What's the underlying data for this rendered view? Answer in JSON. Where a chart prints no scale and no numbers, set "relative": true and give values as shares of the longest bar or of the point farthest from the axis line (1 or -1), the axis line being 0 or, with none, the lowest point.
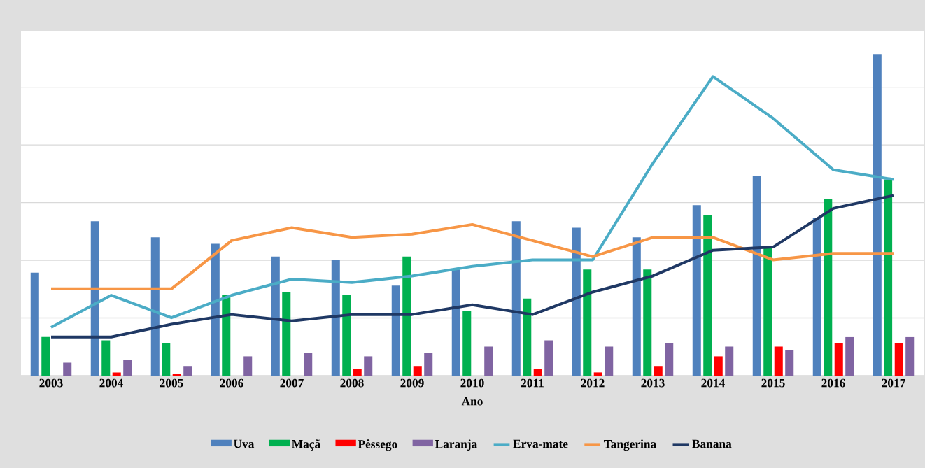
{
  "chart_data": {
    "type": "bar",
    "xlabel": "Ano",
    "relative": true,
    "grid": "y",
    "legend": "bottom",
    "categories": [
      "2003",
      "2004",
      "2005",
      "2006",
      "2007",
      "2008",
      "2009",
      "2010",
      "2011",
      "2012",
      "2013",
      "2014",
      "2015",
      "2016",
      "2017"
    ],
    "series": [
      {
        "name": "Uva",
        "color": "#4f81bd",
        "values": [
          0.32,
          0.48,
          0.43,
          0.41,
          0.37,
          0.36,
          0.28,
          0.33,
          0.48,
          0.46,
          0.43,
          0.53,
          0.62,
          0.49,
          1.0
        ]
      },
      {
        "name": "Maçã",
        "color": "#00b050",
        "values": [
          0.12,
          0.11,
          0.1,
          0.25,
          0.26,
          0.25,
          0.37,
          0.2,
          0.24,
          0.33,
          0.33,
          0.5,
          0.4,
          0.55,
          0.61
        ]
      },
      {
        "name": "Pêssego",
        "color": "#ff0000",
        "values": [
          0,
          0.01,
          0.005,
          0,
          0,
          0.02,
          0.03,
          0,
          0.02,
          0.01,
          0.03,
          0.06,
          0.09,
          0.1,
          0.1
        ]
      },
      {
        "name": "Laranja",
        "color": "#8064a2",
        "values": [
          0.04,
          0.05,
          0.03,
          0.06,
          0.07,
          0.06,
          0.07,
          0.09,
          0.11,
          0.09,
          0.1,
          0.09,
          0.08,
          0.12,
          0.12
        ]
      },
      {
        "name": "Erva-mate",
        "type": "line",
        "color": "#4bacc6",
        "values": [
          0.15,
          0.25,
          0.18,
          0.25,
          0.3,
          0.29,
          0.31,
          0.34,
          0.36,
          0.36,
          0.66,
          0.93,
          0.8,
          0.64,
          0.61
        ]
      },
      {
        "name": "Tangerina",
        "type": "line",
        "color": "#f79646",
        "values": [
          0.27,
          0.27,
          0.27,
          0.42,
          0.46,
          0.43,
          0.44,
          0.47,
          0.42,
          0.37,
          0.43,
          0.43,
          0.36,
          0.38,
          0.38
        ]
      },
      {
        "name": "Banana",
        "type": "line",
        "color": "#1f3864",
        "values": [
          0.12,
          0.12,
          0.16,
          0.19,
          0.17,
          0.19,
          0.19,
          0.22,
          0.19,
          0.26,
          0.31,
          0.39,
          0.4,
          0.52,
          0.56
        ]
      }
    ]
  }
}
